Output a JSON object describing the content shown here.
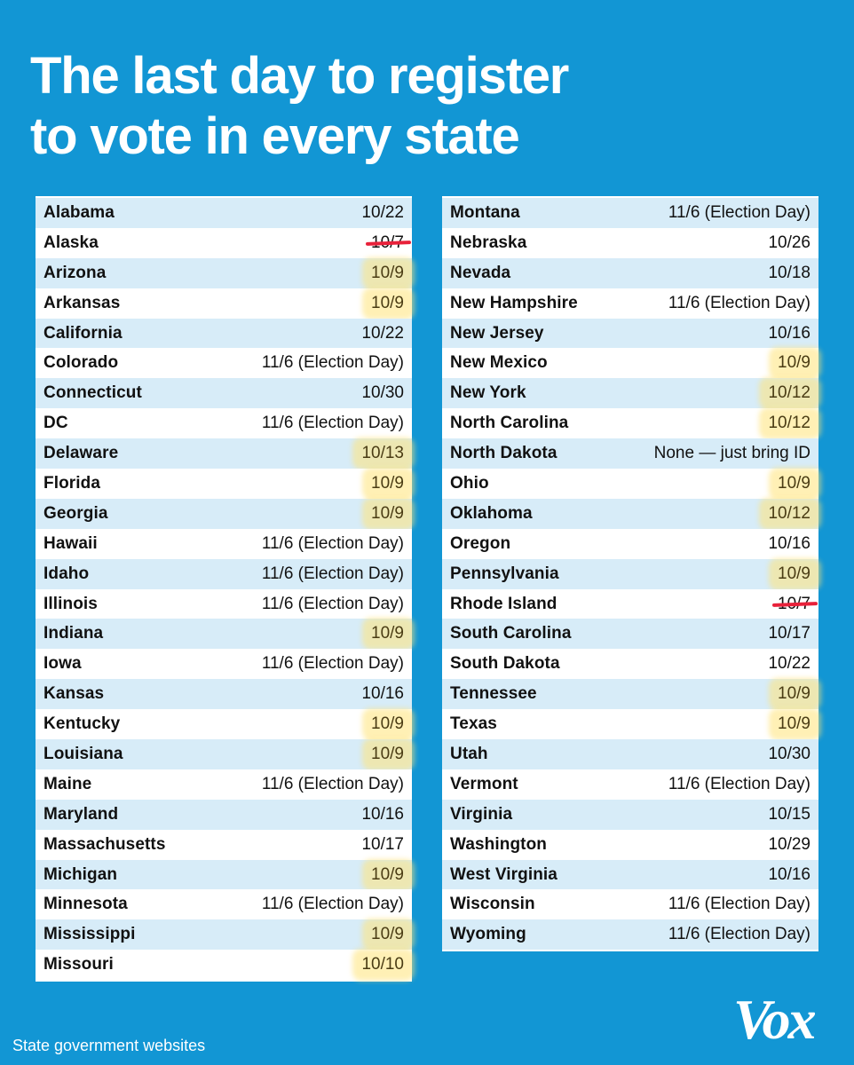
{
  "title_line1": "The last day to register",
  "title_line2": "to vote in every state",
  "left_rows": [
    {
      "state": "Alabama",
      "date": "10/22",
      "mark": ""
    },
    {
      "state": "Alaska",
      "date": "10/7",
      "mark": "strike"
    },
    {
      "state": "Arizona",
      "date": "10/9",
      "mark": "hl"
    },
    {
      "state": "Arkansas",
      "date": "10/9",
      "mark": "hl"
    },
    {
      "state": "California",
      "date": "10/22",
      "mark": ""
    },
    {
      "state": "Colorado",
      "date": "11/6 (Election Day)",
      "mark": ""
    },
    {
      "state": "Connecticut",
      "date": "10/30",
      "mark": ""
    },
    {
      "state": "DC",
      "date": "11/6 (Election Day)",
      "mark": ""
    },
    {
      "state": "Delaware",
      "date": "10/13",
      "mark": "hl"
    },
    {
      "state": "Florida",
      "date": "10/9",
      "mark": "hl"
    },
    {
      "state": "Georgia",
      "date": "10/9",
      "mark": "hl"
    },
    {
      "state": "Hawaii",
      "date": "11/6 (Election Day)",
      "mark": ""
    },
    {
      "state": "Idaho",
      "date": "11/6 (Election Day)",
      "mark": ""
    },
    {
      "state": "Illinois",
      "date": "11/6 (Election Day)",
      "mark": ""
    },
    {
      "state": "Indiana",
      "date": "10/9",
      "mark": "hl"
    },
    {
      "state": "Iowa",
      "date": "11/6 (Election Day)",
      "mark": ""
    },
    {
      "state": "Kansas",
      "date": "10/16",
      "mark": ""
    },
    {
      "state": "Kentucky",
      "date": "10/9",
      "mark": "hl"
    },
    {
      "state": "Louisiana",
      "date": "10/9",
      "mark": "hl"
    },
    {
      "state": "Maine",
      "date": "11/6 (Election Day)",
      "mark": ""
    },
    {
      "state": "Maryland",
      "date": "10/16",
      "mark": ""
    },
    {
      "state": "Massachusetts",
      "date": "10/17",
      "mark": ""
    },
    {
      "state": "Michigan",
      "date": "10/9",
      "mark": "hl"
    },
    {
      "state": "Minnesota",
      "date": "11/6 (Election Day)",
      "mark": ""
    },
    {
      "state": "Mississippi",
      "date": "10/9",
      "mark": "hl"
    },
    {
      "state": "Missouri",
      "date": "10/10",
      "mark": "hl"
    }
  ],
  "right_rows": [
    {
      "state": "Montana",
      "date": "11/6 (Election Day)",
      "mark": ""
    },
    {
      "state": "Nebraska",
      "date": "10/26",
      "mark": ""
    },
    {
      "state": "Nevada",
      "date": "10/18",
      "mark": ""
    },
    {
      "state": "New Hampshire",
      "date": "11/6 (Election Day)",
      "mark": ""
    },
    {
      "state": "New Jersey",
      "date": "10/16",
      "mark": ""
    },
    {
      "state": "New Mexico",
      "date": "10/9",
      "mark": "hl"
    },
    {
      "state": "New York",
      "date": "10/12",
      "mark": "hl"
    },
    {
      "state": "North Carolina",
      "date": "10/12",
      "mark": "hl"
    },
    {
      "state": "North Dakota",
      "date": "None — just bring ID",
      "mark": ""
    },
    {
      "state": "Ohio",
      "date": "10/9",
      "mark": "hl"
    },
    {
      "state": "Oklahoma",
      "date": "10/12",
      "mark": "hl"
    },
    {
      "state": "Oregon",
      "date": "10/16",
      "mark": ""
    },
    {
      "state": "Pennsylvania",
      "date": "10/9",
      "mark": "hl"
    },
    {
      "state": "Rhode Island",
      "date": "10/7",
      "mark": "strike"
    },
    {
      "state": "South Carolina",
      "date": "10/17",
      "mark": ""
    },
    {
      "state": "South Dakota",
      "date": "10/22",
      "mark": ""
    },
    {
      "state": "Tennessee",
      "date": "10/9",
      "mark": "hl"
    },
    {
      "state": "Texas",
      "date": "10/9",
      "mark": "hl"
    },
    {
      "state": "Utah",
      "date": "10/30",
      "mark": ""
    },
    {
      "state": "Vermont",
      "date": "11/6 (Election Day)",
      "mark": ""
    },
    {
      "state": "Virginia",
      "date": "10/15",
      "mark": ""
    },
    {
      "state": "Washington",
      "date": "10/29",
      "mark": ""
    },
    {
      "state": "West Virginia",
      "date": "10/16",
      "mark": ""
    },
    {
      "state": "Wisconsin",
      "date": "11/6 (Election Day)",
      "mark": ""
    },
    {
      "state": "Wyoming",
      "date": "11/6 (Election Day)",
      "mark": ""
    }
  ],
  "source": "State government websites",
  "logo": "Vox",
  "colors": {
    "background": "#1296d4",
    "row_alt": "#d7ecf8",
    "highlight": "#ffe478",
    "strike": "#e8213a"
  }
}
